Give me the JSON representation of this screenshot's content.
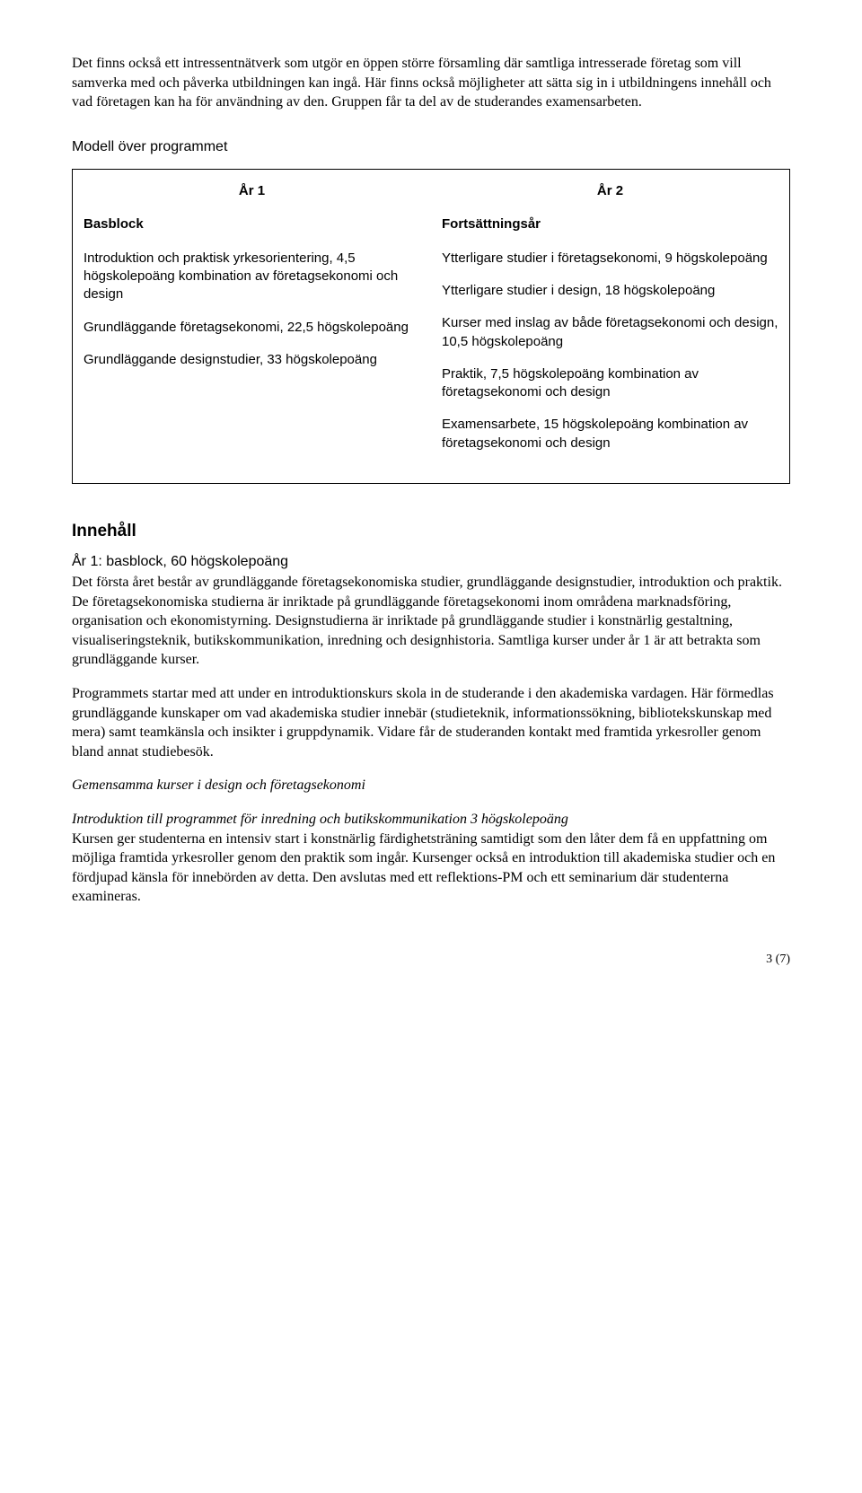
{
  "intro": {
    "p1": "Det finns också ett intressentnätverk som utgör en öppen större församling där samtliga intresserade företag som vill samverka med och påverka utbildningen kan ingå. Här finns också möjligheter att sätta sig in i utbildningens innehåll och vad företagen kan ha för användning av den. Gruppen får ta del av de studerandes examensarbeten."
  },
  "model": {
    "heading": "Modell över programmet",
    "left": {
      "year": "År 1",
      "block": "Basblock",
      "items": [
        "Introduktion och praktisk yrkesorientering, 4,5 högskolepoäng kombination av företagsekonomi och design",
        "Grundläggande företagsekonomi, 22,5 högskolepoäng",
        "Grundläggande designstudier, 33 högskolepoäng"
      ]
    },
    "right": {
      "year": "År 2",
      "block": "Fortsättningsår",
      "items": [
        "Ytterligare studier i företagsekonomi, 9 högskolepoäng",
        "Ytterligare studier i design, 18 högskolepoäng",
        "Kurser med inslag av både företagsekonomi och design, 10,5 högskolepoäng",
        "Praktik, 7,5 högskolepoäng kombination av företagsekonomi och design",
        "Examensarbete, 15 högskolepoäng kombination av företagsekonomi och design"
      ]
    }
  },
  "content": {
    "heading": "Innehåll",
    "sub": "År 1: basblock, 60 högskolepoäng",
    "p1": "Det första året består av grundläggande företagsekonomiska studier, grundläggande designstudier, introduktion och praktik. De företagsekonomiska studierna är inriktade på grundläggande företagsekonomi inom områdena marknadsföring, organisation och ekonomistyrning. Designstudierna är inriktade på grundläggande studier i konstnärlig gestaltning, visualiseringsteknik, butikskommunikation, inredning och designhistoria. Samtliga kurser under år 1 är att betrakta som grundläggande kurser.",
    "p2": "Programmets startar med att under en introduktionskurs skola in de studerande i den akademiska vardagen. Här förmedlas grundläggande kunskaper om vad akademiska studier innebär (studieteknik, informationssökning, bibliotekskunskap med mera) samt teamkänsla och insikter i gruppdynamik. Vidare får de studeranden kontakt med framtida yrkesroller genom bland annat studiebesök.",
    "shared_heading": "Gemensamma kurser i design och företagsekonomi",
    "course_heading": "Introduktion till programmet för inredning och butikskommunikation 3 högskolepoäng",
    "p3": "Kursen ger studenterna en intensiv start i konstnärlig färdighetsträning samtidigt som den låter dem få en uppfattning om möjliga framtida yrkesroller genom den praktik som ingår. Kursenger också en introduktion till akademiska studier och en fördjupad känsla för innebörden av detta. Den avslutas med ett reflektions-PM och ett seminarium där studenterna examineras."
  },
  "page": "3 (7)"
}
